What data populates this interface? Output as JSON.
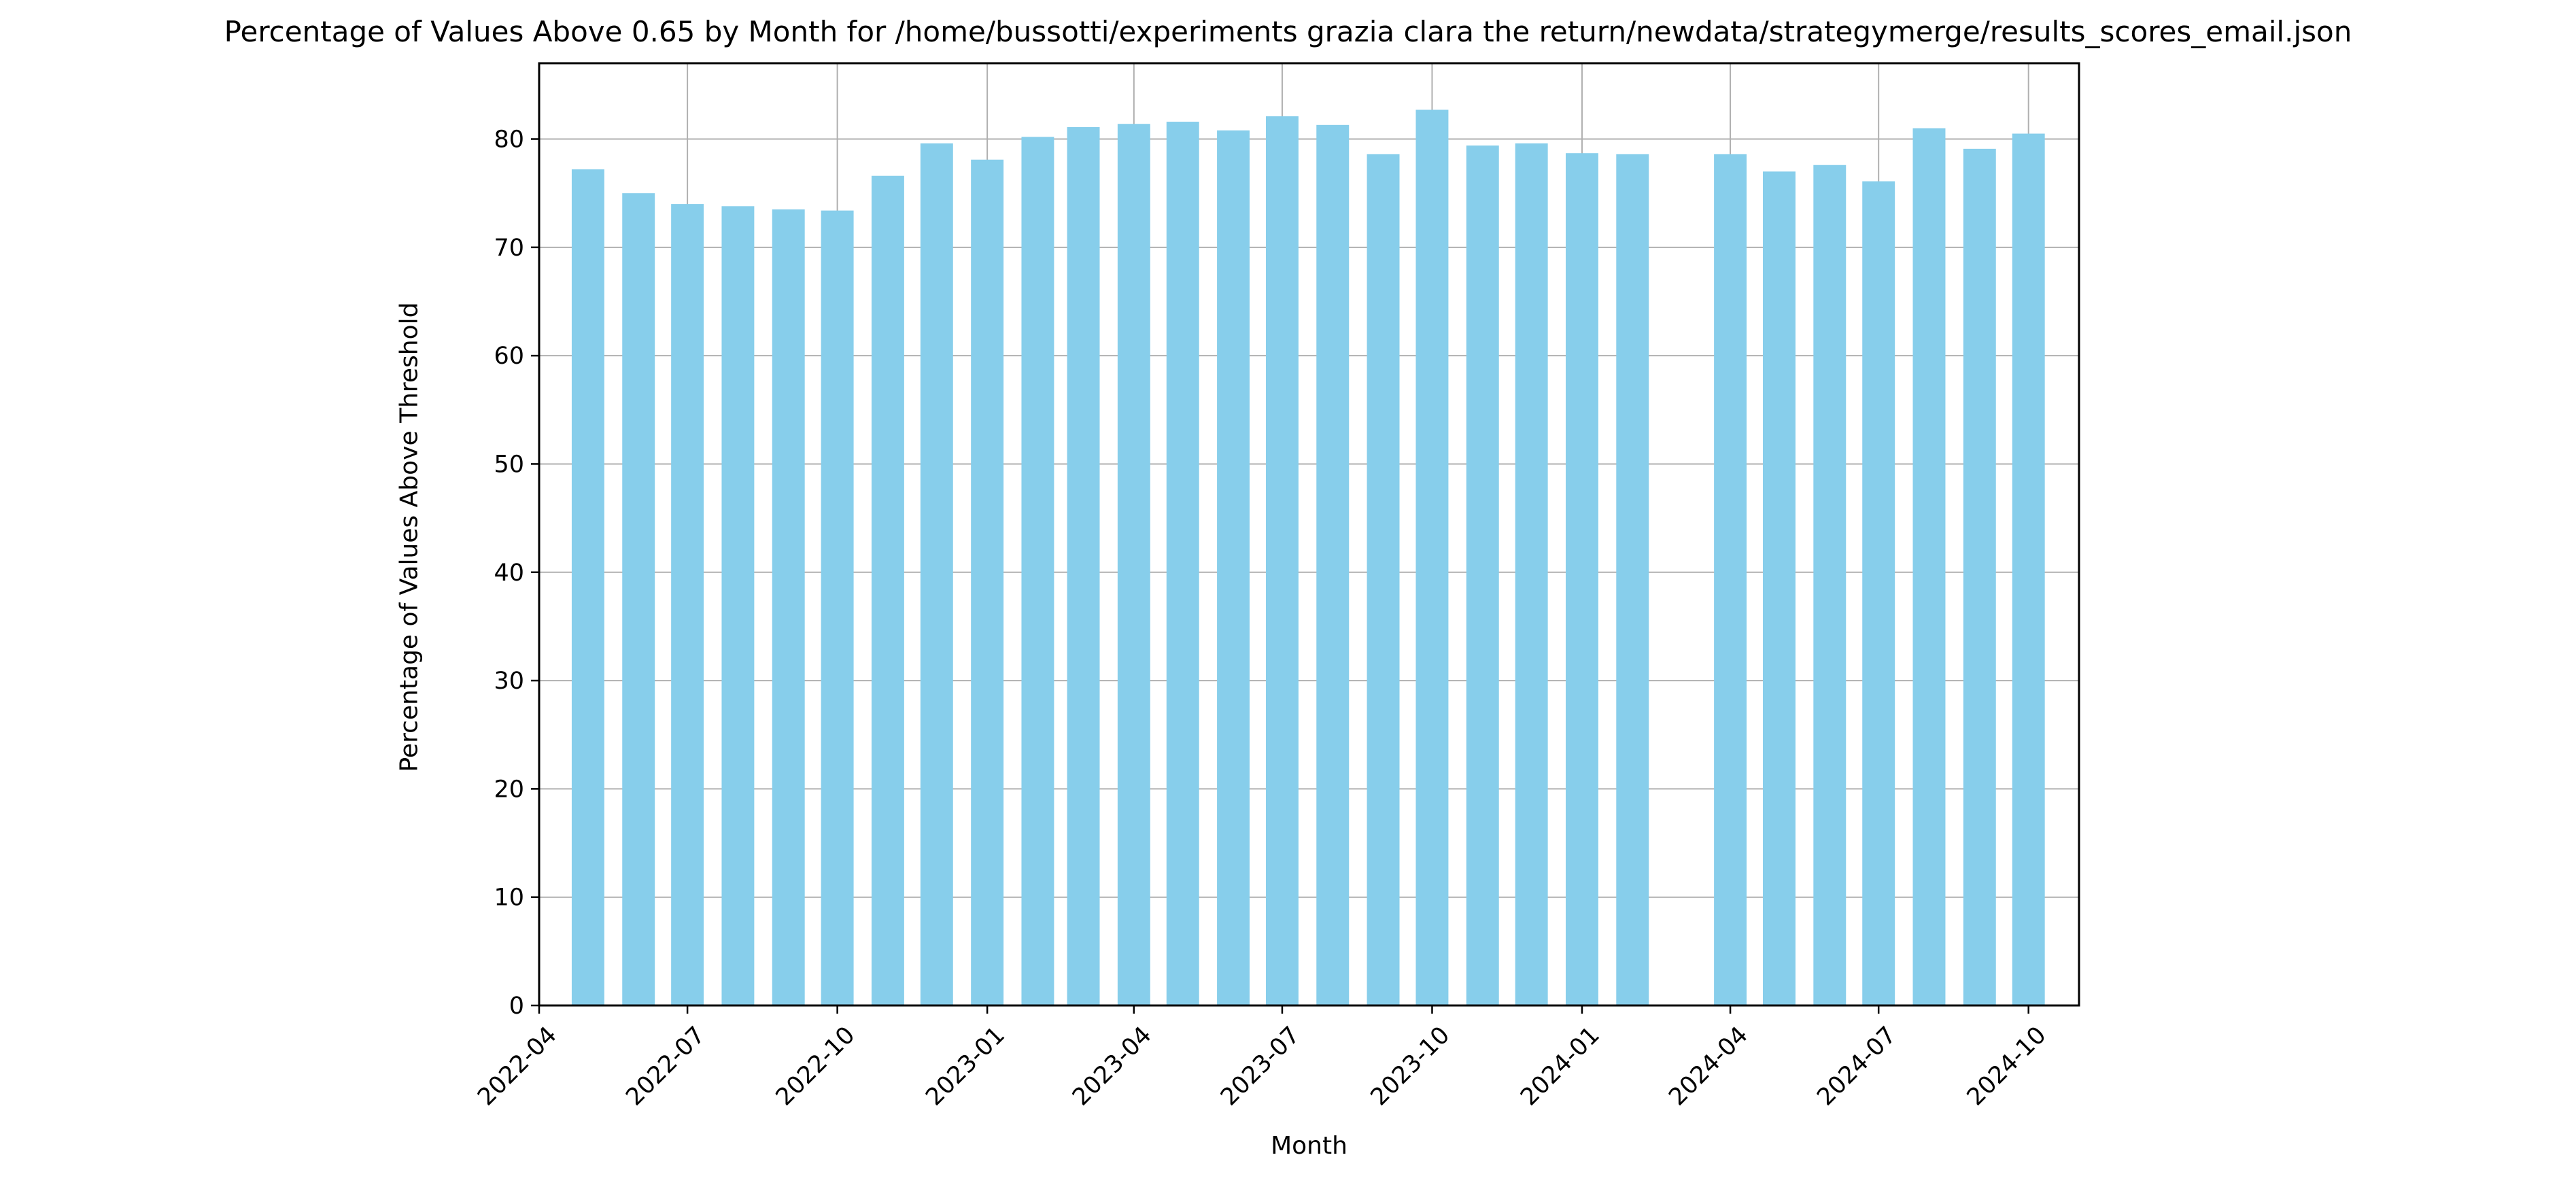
{
  "chart_data": {
    "type": "bar",
    "title": "Percentage of Values Above 0.65 by Month for /home/bussotti/experiments grazia clara the return/newdata/strategymerge/results_scores_email.json",
    "xlabel": "Month",
    "ylabel": "Percentage of Values Above Threshold",
    "xlim": [
      "2022-04-01",
      "2024-11-01"
    ],
    "ylim": [
      0,
      87
    ],
    "x_ticks": [
      "2022-04",
      "2022-07",
      "2022-10",
      "2023-01",
      "2023-04",
      "2023-07",
      "2023-10",
      "2024-01",
      "2024-04",
      "2024-07",
      "2024-10"
    ],
    "y_ticks": [
      0,
      10,
      20,
      30,
      40,
      50,
      60,
      70,
      80
    ],
    "x_tick_rotation": 45,
    "grid": true,
    "bar_color": "#87ceeb",
    "categories": [
      "2022-05",
      "2022-06",
      "2022-07",
      "2022-08",
      "2022-09",
      "2022-10",
      "2022-11",
      "2022-12",
      "2023-01",
      "2023-02",
      "2023-03",
      "2023-04",
      "2023-05",
      "2023-06",
      "2023-07",
      "2023-08",
      "2023-09",
      "2023-10",
      "2023-11",
      "2023-12",
      "2024-01",
      "2024-02",
      "2024-04",
      "2024-05",
      "2024-06",
      "2024-07",
      "2024-08",
      "2024-09",
      "2024-10"
    ],
    "values": [
      77.2,
      75.0,
      74.0,
      73.8,
      73.5,
      73.4,
      76.6,
      79.6,
      78.1,
      80.2,
      81.1,
      81.4,
      81.6,
      80.8,
      82.1,
      81.3,
      78.6,
      82.7,
      79.4,
      79.6,
      78.7,
      78.6,
      78.6,
      77.0,
      77.6,
      76.1,
      81.0,
      79.1,
      80.5
    ]
  }
}
